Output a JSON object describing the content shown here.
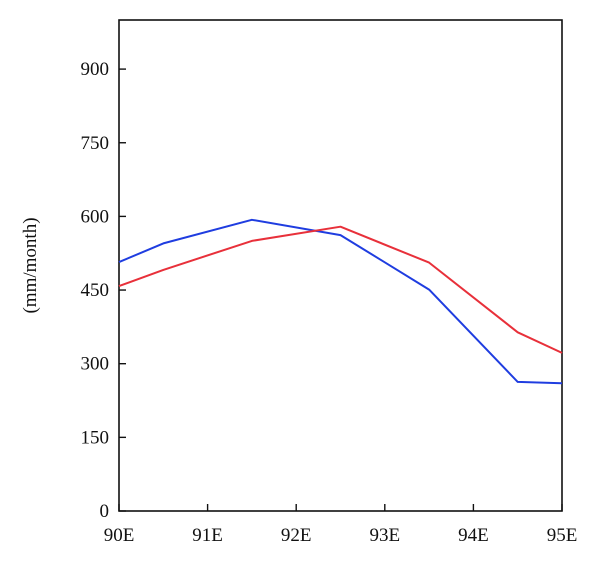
{
  "chart_data": {
    "type": "line",
    "title": "",
    "xlabel": "",
    "ylabel": "(mm/month)",
    "x": [
      90,
      90.5,
      91.5,
      92.5,
      93.5,
      94.5,
      95
    ],
    "x_ticks": [
      {
        "value": 90,
        "label": "90E"
      },
      {
        "value": 91,
        "label": "91E"
      },
      {
        "value": 92,
        "label": "92E"
      },
      {
        "value": 93,
        "label": "93E"
      },
      {
        "value": 94,
        "label": "94E"
      },
      {
        "value": 95,
        "label": "95E"
      }
    ],
    "y_ticks": [
      {
        "value": 0,
        "label": "0"
      },
      {
        "value": 150,
        "label": "150"
      },
      {
        "value": 300,
        "label": "300"
      },
      {
        "value": 450,
        "label": "450"
      },
      {
        "value": 600,
        "label": "600"
      },
      {
        "value": 750,
        "label": "750"
      },
      {
        "value": 900,
        "label": "900"
      }
    ],
    "xlim": [
      90,
      95
    ],
    "ylim": [
      0,
      1000
    ],
    "grid": false,
    "legend": "none",
    "series": [
      {
        "color": "#1f3de0",
        "values": [
          507,
          545,
          593,
          562,
          451,
          263,
          260
        ]
      },
      {
        "color": "#e8303a",
        "values": [
          458,
          491,
          550,
          579,
          506,
          364,
          322
        ]
      }
    ]
  }
}
